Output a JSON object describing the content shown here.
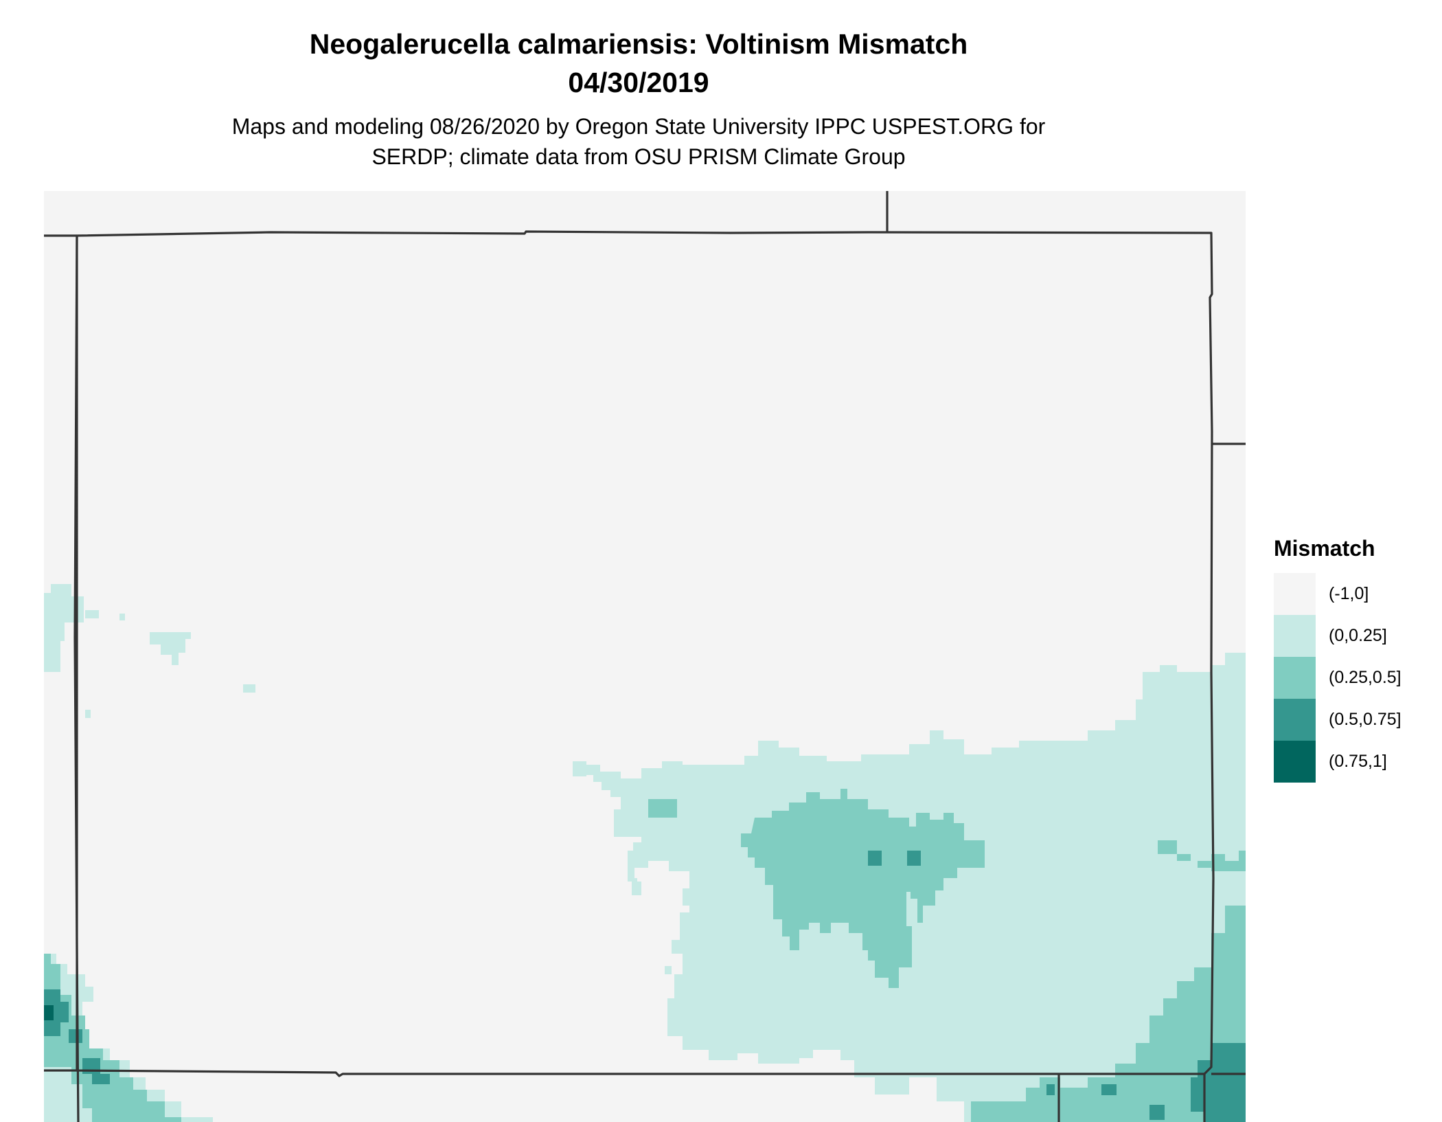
{
  "header": {
    "title_line1": "Neogalerucella calmariensis: Voltinism Mismatch",
    "title_line2": "04/30/2019",
    "subtitle_line1": "Maps and modeling 08/26/2020 by Oregon State University IPPC USPEST.ORG for",
    "subtitle_line2": "SERDP; climate data from OSU PRISM Climate Group"
  },
  "map": {
    "background_color": "#f4f4f4",
    "border_color": "#333333",
    "class_colors": {
      "c1": "#f5f5f5",
      "c2": "#c7eae5",
      "c3": "#80cdc1",
      "c4": "#35978f",
      "c5": "#01665e"
    }
  },
  "legend": {
    "title": "Mismatch",
    "items": [
      {
        "label": "(-1,0]",
        "color": "#f5f5f5"
      },
      {
        "label": "(0,0.25]",
        "color": "#c7eae5"
      },
      {
        "label": "(0.25,0.5]",
        "color": "#80cdc1"
      },
      {
        "label": "(0.5,0.75]",
        "color": "#35978f"
      },
      {
        "label": "(0.75,1]",
        "color": "#01665e"
      }
    ]
  }
}
